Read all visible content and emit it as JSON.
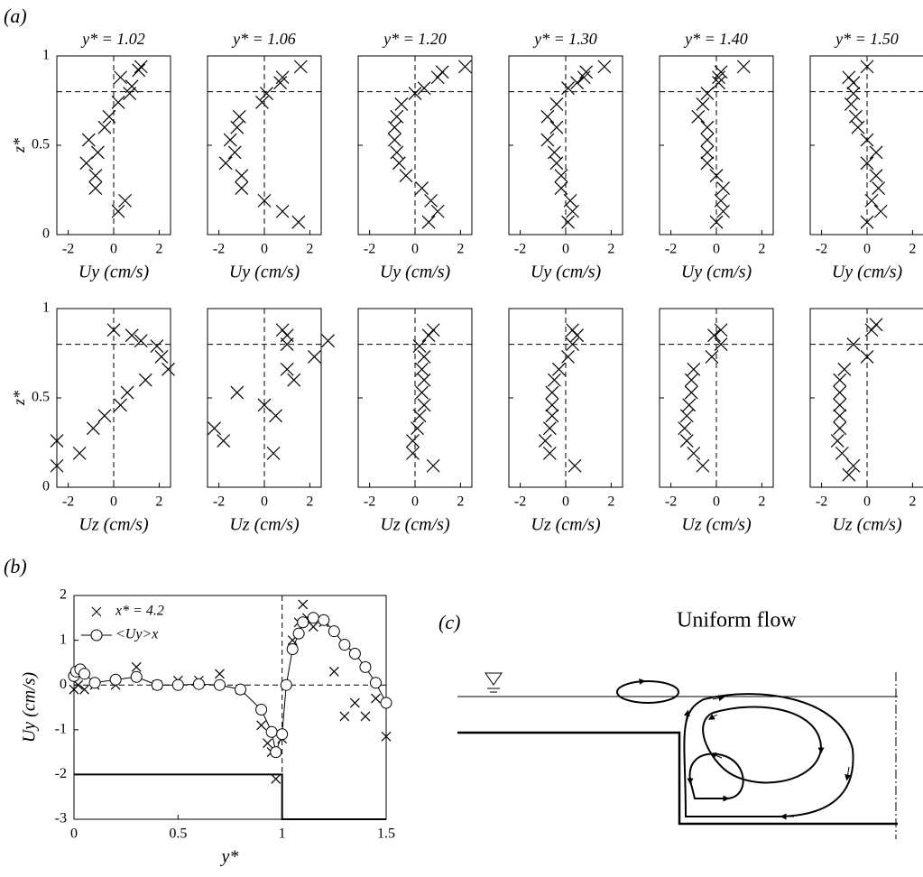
{
  "chart_data": [
    {
      "type": "scatter",
      "panel_label": "(a)",
      "title": "y* = 1.02",
      "xlabel": "Uy (cm/s)",
      "ylabel": "z*",
      "x": [
        1.2,
        1.1,
        0.3,
        0.8,
        0.7,
        0.2,
        -0.2,
        -0.4,
        -1.1,
        -0.7,
        -1.2,
        -0.8,
        -0.8,
        0.5,
        0.2
      ],
      "values": [
        0.94,
        0.92,
        0.88,
        0.83,
        0.79,
        0.74,
        0.66,
        0.6,
        0.53,
        0.46,
        0.4,
        0.33,
        0.26,
        0.19,
        0.13
      ],
      "xlim": [
        -2.5,
        2.5
      ],
      "ylim": [
        0,
        1
      ],
      "xticks": [
        -2,
        0,
        2
      ],
      "yticks": [
        0,
        0.5,
        1
      ],
      "color": "#000000",
      "ref_x": 0,
      "ref_y": 0.8
    },
    {
      "type": "scatter",
      "title": "y* = 1.06",
      "xlabel": "Uy (cm/s)",
      "x": [
        1.6,
        0.8,
        0.7,
        0.1,
        -0.1,
        -1.1,
        -1.2,
        -1.5,
        -1.3,
        -1.7,
        -1.0,
        -1.0,
        0,
        0.8,
        1.5
      ],
      "values": [
        0.94,
        0.88,
        0.85,
        0.79,
        0.74,
        0.66,
        0.6,
        0.53,
        0.46,
        0.4,
        0.33,
        0.26,
        0.19,
        0.13,
        0.07
      ],
      "xlim": [
        -2.5,
        2.5
      ],
      "ylim": [
        0,
        1
      ],
      "xticks": [
        -2,
        0,
        2
      ],
      "yticks": [
        0,
        0.5,
        1
      ],
      "color": "#000000",
      "ref_x": 0,
      "ref_y": 0.8
    },
    {
      "type": "scatter",
      "title": "y* = 1.20",
      "xlabel": "Uy (cm/s)",
      "x": [
        2.2,
        1.2,
        1.0,
        0.4,
        0,
        -0.6,
        -0.8,
        -0.9,
        -0.9,
        -0.8,
        -0.7,
        -0.4,
        0.3,
        0.7,
        1.0,
        0.6
      ],
      "values": [
        0.94,
        0.91,
        0.88,
        0.82,
        0.79,
        0.73,
        0.66,
        0.6,
        0.53,
        0.46,
        0.4,
        0.33,
        0.26,
        0.19,
        0.13,
        0.07
      ],
      "xlim": [
        -2.5,
        2.5
      ],
      "ylim": [
        0,
        1
      ],
      "xticks": [
        -2,
        0,
        2
      ],
      "yticks": [
        0,
        0.5,
        1
      ],
      "color": "#000000",
      "ref_x": 0,
      "ref_y": 0.8
    },
    {
      "type": "scatter",
      "title": "y* = 1.30",
      "xlabel": "Uy (cm/s)",
      "x": [
        1.7,
        0.9,
        0.8,
        0.5,
        0.1,
        -0.4,
        -0.8,
        -0.4,
        -0.8,
        -0.5,
        -0.4,
        -0.2,
        -0.2,
        0.2,
        0.3,
        0.1
      ],
      "values": [
        0.94,
        0.91,
        0.88,
        0.85,
        0.82,
        0.73,
        0.66,
        0.6,
        0.53,
        0.46,
        0.4,
        0.33,
        0.26,
        0.19,
        0.13,
        0.07
      ],
      "xlim": [
        -2.5,
        2.5
      ],
      "ylim": [
        0,
        1
      ],
      "xticks": [
        -2,
        0,
        2
      ],
      "yticks": [
        0,
        0.5,
        1
      ],
      "color": "#000000",
      "ref_x": 0,
      "ref_y": 0.8
    },
    {
      "type": "scatter",
      "title": "y* = 1.40",
      "xlabel": "Uy (cm/s)",
      "x": [
        1.2,
        0.2,
        0.1,
        0.1,
        -0.4,
        -0.6,
        -0.8,
        -0.4,
        -0.4,
        -0.4,
        -0.4,
        0,
        0.3,
        0.2,
        0.3,
        0
      ],
      "values": [
        0.94,
        0.91,
        0.88,
        0.85,
        0.79,
        0.73,
        0.66,
        0.6,
        0.53,
        0.46,
        0.4,
        0.33,
        0.26,
        0.19,
        0.13,
        0.07
      ],
      "xlim": [
        -2.5,
        2.5
      ],
      "ylim": [
        0,
        1
      ],
      "xticks": [
        -2,
        0,
        2
      ],
      "yticks": [
        0,
        0.5,
        1
      ],
      "color": "#000000",
      "ref_x": 0,
      "ref_y": 0.8
    },
    {
      "type": "scatter",
      "title": "y* = 1.50",
      "xlabel": "Uy (cm/s)",
      "x": [
        0,
        -0.8,
        -0.6,
        -0.6,
        -0.7,
        -0.5,
        -0.4,
        0,
        0.4,
        0,
        0.4,
        0.5,
        0.2,
        0.6,
        0
      ],
      "values": [
        0.94,
        0.88,
        0.85,
        0.79,
        0.73,
        0.66,
        0.6,
        0.53,
        0.46,
        0.4,
        0.33,
        0.26,
        0.19,
        0.13,
        0.07
      ],
      "xlim": [
        -2.5,
        2.5
      ],
      "ylim": [
        0,
        1
      ],
      "xticks": [
        -2,
        0,
        2
      ],
      "yticks": [
        0,
        0.5,
        1
      ],
      "color": "#000000",
      "ref_x": 0,
      "ref_y": 0.8
    },
    {
      "type": "scatter",
      "xlabel": "Uz (cm/s)",
      "ylabel": "z*",
      "x": [
        0,
        0.8,
        1.2,
        1.9,
        2.1,
        2.4,
        1.4,
        0.6,
        0.3,
        -0.4,
        -0.9,
        -1.5,
        -2.5,
        -2.5
      ],
      "values": [
        0.88,
        0.85,
        0.82,
        0.79,
        0.73,
        0.66,
        0.6,
        0.53,
        0.46,
        0.4,
        0.33,
        0.19,
        0.26,
        0.12
      ],
      "xlim": [
        -2.5,
        2.5
      ],
      "ylim": [
        0,
        1
      ],
      "xticks": [
        -2,
        0,
        2
      ],
      "yticks": [
        0,
        0.5,
        1
      ],
      "color": "#000000",
      "ref_x": 0,
      "ref_y": 0.8
    },
    {
      "type": "scatter",
      "xlabel": "Uz (cm/s)",
      "x": [
        0.8,
        1.0,
        1.0,
        2.8,
        2.2,
        1.0,
        1.3,
        -1.2,
        0,
        0.5,
        -2.2,
        -1.8,
        0.4
      ],
      "values": [
        0.88,
        0.85,
        0.8,
        0.82,
        0.73,
        0.66,
        0.6,
        0.53,
        0.46,
        0.4,
        0.33,
        0.26,
        0.19
      ],
      "xlim": [
        -2.5,
        2.5
      ],
      "ylim": [
        0,
        1
      ],
      "xticks": [
        -2,
        0,
        2
      ],
      "yticks": [
        0,
        0.5,
        1
      ],
      "color": "#000000",
      "ref_x": 0,
      "ref_y": 0.8
    },
    {
      "type": "scatter",
      "xlabel": "Uz (cm/s)",
      "x": [
        0.8,
        0.6,
        0.2,
        0.4,
        0.3,
        0.4,
        0.3,
        0.4,
        0.2,
        0.1,
        -0.1,
        -0.1,
        0.8
      ],
      "values": [
        0.88,
        0.85,
        0.79,
        0.73,
        0.66,
        0.6,
        0.53,
        0.46,
        0.4,
        0.33,
        0.26,
        0.19,
        0.12
      ],
      "xlim": [
        -2.5,
        2.5
      ],
      "ylim": [
        0,
        1
      ],
      "xticks": [
        -2,
        0,
        2
      ],
      "yticks": [
        0,
        0.5,
        1
      ],
      "color": "#000000",
      "ref_x": 0,
      "ref_y": 0.8
    },
    {
      "type": "scatter",
      "xlabel": "Uz (cm/s)",
      "x": [
        0.3,
        0.5,
        0.3,
        0.1,
        -0.3,
        -0.5,
        -0.6,
        -0.6,
        -0.6,
        -0.7,
        -0.9,
        -0.7,
        0.4
      ],
      "values": [
        0.88,
        0.85,
        0.8,
        0.73,
        0.66,
        0.6,
        0.53,
        0.46,
        0.4,
        0.33,
        0.26,
        0.19,
        0.12
      ],
      "xlim": [
        -2.5,
        2.5
      ],
      "ylim": [
        0,
        1
      ],
      "xticks": [
        -2,
        0,
        2
      ],
      "yticks": [
        0,
        0.5,
        1
      ],
      "color": "#000000",
      "ref_x": 0,
      "ref_y": 0.8
    },
    {
      "type": "scatter",
      "xlabel": "Uz (cm/s)",
      "x": [
        0.2,
        -0.1,
        0.2,
        -0.2,
        -1.0,
        -1.1,
        -1.1,
        -1.2,
        -1.3,
        -1.4,
        -1.3,
        -1.0,
        -0.6
      ],
      "values": [
        0.88,
        0.85,
        0.8,
        0.73,
        0.66,
        0.6,
        0.53,
        0.46,
        0.4,
        0.33,
        0.26,
        0.19,
        0.12
      ],
      "xlim": [
        -2.5,
        2.5
      ],
      "ylim": [
        0,
        1
      ],
      "xticks": [
        -2,
        0,
        2
      ],
      "yticks": [
        0,
        0.5,
        1
      ],
      "color": "#000000",
      "ref_x": 0,
      "ref_y": 0.8
    },
    {
      "type": "scatter",
      "xlabel": "Uz (cm/s)",
      "x": [
        0.4,
        0.2,
        -0.6,
        0,
        -1.0,
        -1.2,
        -1.2,
        -1.2,
        -1.2,
        -1.2,
        -1.3,
        -1.1,
        -0.6,
        -0.8
      ],
      "values": [
        0.91,
        0.88,
        0.8,
        0.73,
        0.66,
        0.6,
        0.53,
        0.46,
        0.4,
        0.33,
        0.26,
        0.19,
        0.12,
        0.07
      ],
      "xlim": [
        -2.5,
        2.5
      ],
      "ylim": [
        0,
        1
      ],
      "xticks": [
        -2,
        0,
        2
      ],
      "yticks": [
        0,
        0.5,
        1
      ],
      "color": "#000000",
      "ref_x": 0,
      "ref_y": 0.8
    },
    {
      "type": "line",
      "panel_label": "(b)",
      "xlabel": "y*",
      "ylabel": "Uy (cm/s)",
      "xlim": [
        0,
        1.5
      ],
      "ylim": [
        -3,
        2
      ],
      "xticks": [
        0,
        0.5,
        1,
        1.5
      ],
      "yticks": [
        -3,
        -2,
        -1,
        0,
        1,
        2
      ],
      "ref_x": 1,
      "ref_y": 0,
      "legend": "upper left",
      "series": [
        {
          "name": "x* = 4.2",
          "marker": "x",
          "line": false,
          "color": "#000000",
          "x": [
            0,
            0.02,
            0.05,
            0.1,
            0.2,
            0.3,
            0.4,
            0.5,
            0.6,
            0.7,
            0.8,
            0.9,
            0.93,
            0.95,
            0.97,
            1.0,
            1.05,
            1.08,
            1.1,
            1.12,
            1.15,
            1.2,
            1.25,
            1.3,
            1.35,
            1.4,
            1.45,
            1.5
          ],
          "values": [
            -0.1,
            0,
            -0.1,
            0,
            0,
            0.4,
            0,
            0.1,
            0.1,
            0.25,
            -0.1,
            -0.9,
            -1.3,
            -1.5,
            -2.1,
            -1.2,
            1.0,
            1.4,
            1.8,
            1.5,
            1.3,
            1.4,
            0.3,
            -0.7,
            -0.4,
            -0.7,
            -0.3,
            -1.15
          ]
        },
        {
          "name": "<Uy>x",
          "marker": "o",
          "line": true,
          "color": "#000000",
          "x": [
            0,
            0.01,
            0.03,
            0.05,
            0.1,
            0.2,
            0.3,
            0.4,
            0.5,
            0.6,
            0.7,
            0.8,
            0.9,
            0.95,
            0.97,
            1.0,
            1.02,
            1.05,
            1.08,
            1.1,
            1.15,
            1.2,
            1.25,
            1.3,
            1.35,
            1.4,
            1.45,
            1.5
          ],
          "values": [
            0.2,
            0.3,
            0.35,
            0.25,
            0.05,
            0.12,
            0.18,
            0,
            0,
            0.02,
            0,
            -0.1,
            -0.55,
            -1.05,
            -1.5,
            -1.1,
            0,
            0.8,
            1.15,
            1.4,
            1.5,
            1.45,
            1.2,
            0.9,
            0.7,
            0.4,
            0.05,
            -0.4
          ]
        }
      ],
      "boundary": {
        "x": [
          0,
          1,
          1,
          1.5
        ],
        "values": [
          -2,
          -2,
          -3,
          -3
        ]
      }
    }
  ],
  "diagram": {
    "label": "(c)",
    "title": "Uniform flow"
  }
}
